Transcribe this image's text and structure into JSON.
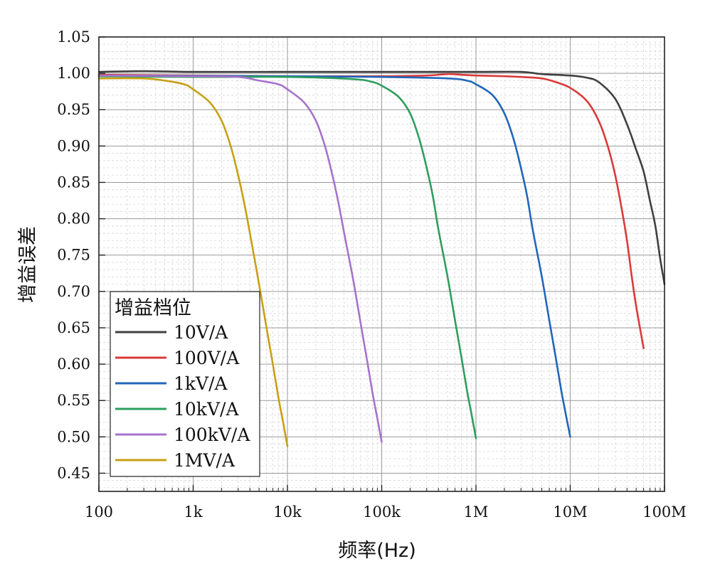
{
  "chart_data": {
    "type": "line",
    "title": "",
    "xlabel": "频率(Hz)",
    "ylabel": "增益误差",
    "x_scale": "log",
    "xlim": [
      100,
      100000000
    ],
    "ylim": [
      0.425,
      1.05
    ],
    "x_ticks": [
      100,
      1000,
      10000,
      100000,
      1000000,
      10000000,
      100000000
    ],
    "x_tick_labels": [
      "100",
      "1k",
      "10k",
      "100k",
      "1M",
      "10M",
      "100M"
    ],
    "y_ticks": [
      0.45,
      0.5,
      0.55,
      0.6,
      0.65,
      0.7,
      0.75,
      0.8,
      0.85,
      0.9,
      0.95,
      1.0,
      1.05
    ],
    "y_tick_labels": [
      "0.45",
      "0.50",
      "0.55",
      "0.60",
      "0.65",
      "0.70",
      "0.75",
      "0.80",
      "0.85",
      "0.90",
      "0.95",
      "1.00",
      "1.05"
    ],
    "grid": true,
    "minor_grid": true,
    "legend": {
      "title": "增益档位",
      "placement": "bottom-left"
    },
    "series": [
      {
        "name": "10V/A",
        "color": "#404040",
        "points": [
          [
            100,
            1.002
          ],
          [
            300,
            1.003
          ],
          [
            1000,
            1.002
          ],
          [
            10000,
            1.002
          ],
          [
            100000,
            1.002
          ],
          [
            1000000,
            1.002
          ],
          [
            3000000,
            1.002
          ],
          [
            5000000,
            0.999
          ],
          [
            10000000,
            0.997
          ],
          [
            15000000,
            0.994
          ],
          [
            20000000,
            0.988
          ],
          [
            30000000,
            0.965
          ],
          [
            40000000,
            0.93
          ],
          [
            50000000,
            0.895
          ],
          [
            60000000,
            0.865
          ],
          [
            70000000,
            0.825
          ],
          [
            80000000,
            0.79
          ],
          [
            90000000,
            0.745
          ],
          [
            100000000,
            0.71
          ]
        ]
      },
      {
        "name": "100V/A",
        "color": "#d93a3a",
        "points": [
          [
            100,
            0.998
          ],
          [
            1000,
            0.997
          ],
          [
            10000,
            0.996
          ],
          [
            100000,
            0.996
          ],
          [
            300000,
            0.997
          ],
          [
            500000,
            0.999
          ],
          [
            700000,
            0.998
          ],
          [
            1000000,
            0.997
          ],
          [
            2000000,
            0.996
          ],
          [
            3000000,
            0.995
          ],
          [
            5000000,
            0.993
          ],
          [
            7000000,
            0.988
          ],
          [
            10000000,
            0.98
          ],
          [
            15000000,
            0.962
          ],
          [
            20000000,
            0.935
          ],
          [
            25000000,
            0.9
          ],
          [
            30000000,
            0.86
          ],
          [
            35000000,
            0.815
          ],
          [
            40000000,
            0.77
          ],
          [
            45000000,
            0.72
          ],
          [
            50000000,
            0.68
          ],
          [
            60000000,
            0.622
          ]
        ]
      },
      {
        "name": "1kV/A",
        "color": "#2266bb",
        "points": [
          [
            100,
            0.997
          ],
          [
            10000,
            0.996
          ],
          [
            100000,
            0.995
          ],
          [
            500000,
            0.993
          ],
          [
            800000,
            0.99
          ],
          [
            1000000,
            0.985
          ],
          [
            1500000,
            0.97
          ],
          [
            2000000,
            0.945
          ],
          [
            2500000,
            0.91
          ],
          [
            3000000,
            0.87
          ],
          [
            3500000,
            0.83
          ],
          [
            4000000,
            0.785
          ],
          [
            5000000,
            0.72
          ],
          [
            6000000,
            0.66
          ],
          [
            7000000,
            0.61
          ],
          [
            8000000,
            0.565
          ],
          [
            9000000,
            0.53
          ],
          [
            10000000,
            0.5
          ]
        ]
      },
      {
        "name": "10kV/A",
        "color": "#2e9e5e",
        "points": [
          [
            100,
            0.996
          ],
          [
            1000,
            0.995
          ],
          [
            10000,
            0.995
          ],
          [
            50000,
            0.992
          ],
          [
            80000,
            0.988
          ],
          [
            100000,
            0.983
          ],
          [
            150000,
            0.968
          ],
          [
            200000,
            0.945
          ],
          [
            250000,
            0.91
          ],
          [
            300000,
            0.87
          ],
          [
            350000,
            0.83
          ],
          [
            400000,
            0.785
          ],
          [
            500000,
            0.72
          ],
          [
            600000,
            0.66
          ],
          [
            700000,
            0.61
          ],
          [
            800000,
            0.565
          ],
          [
            900000,
            0.53
          ],
          [
            1000000,
            0.498
          ]
        ]
      },
      {
        "name": "100kV/A",
        "color": "#a673cc",
        "points": [
          [
            100,
            0.997
          ],
          [
            1000,
            0.996
          ],
          [
            3000,
            0.995
          ],
          [
            5000,
            0.99
          ],
          [
            8000,
            0.985
          ],
          [
            10000,
            0.978
          ],
          [
            15000,
            0.96
          ],
          [
            20000,
            0.935
          ],
          [
            25000,
            0.9
          ],
          [
            30000,
            0.86
          ],
          [
            35000,
            0.82
          ],
          [
            40000,
            0.78
          ],
          [
            50000,
            0.715
          ],
          [
            60000,
            0.655
          ],
          [
            70000,
            0.605
          ],
          [
            80000,
            0.56
          ],
          [
            90000,
            0.525
          ],
          [
            100000,
            0.493
          ]
        ]
      },
      {
        "name": "1MV/A",
        "color": "#c7a015",
        "points": [
          [
            100,
            0.993
          ],
          [
            300,
            0.993
          ],
          [
            500,
            0.99
          ],
          [
            800,
            0.985
          ],
          [
            1000,
            0.978
          ],
          [
            1500,
            0.96
          ],
          [
            2000,
            0.935
          ],
          [
            2500,
            0.9
          ],
          [
            3000,
            0.86
          ],
          [
            3500,
            0.82
          ],
          [
            4000,
            0.78
          ],
          [
            5000,
            0.71
          ],
          [
            6000,
            0.65
          ],
          [
            7000,
            0.6
          ],
          [
            8000,
            0.555
          ],
          [
            9000,
            0.52
          ],
          [
            10000,
            0.487
          ]
        ]
      }
    ]
  }
}
